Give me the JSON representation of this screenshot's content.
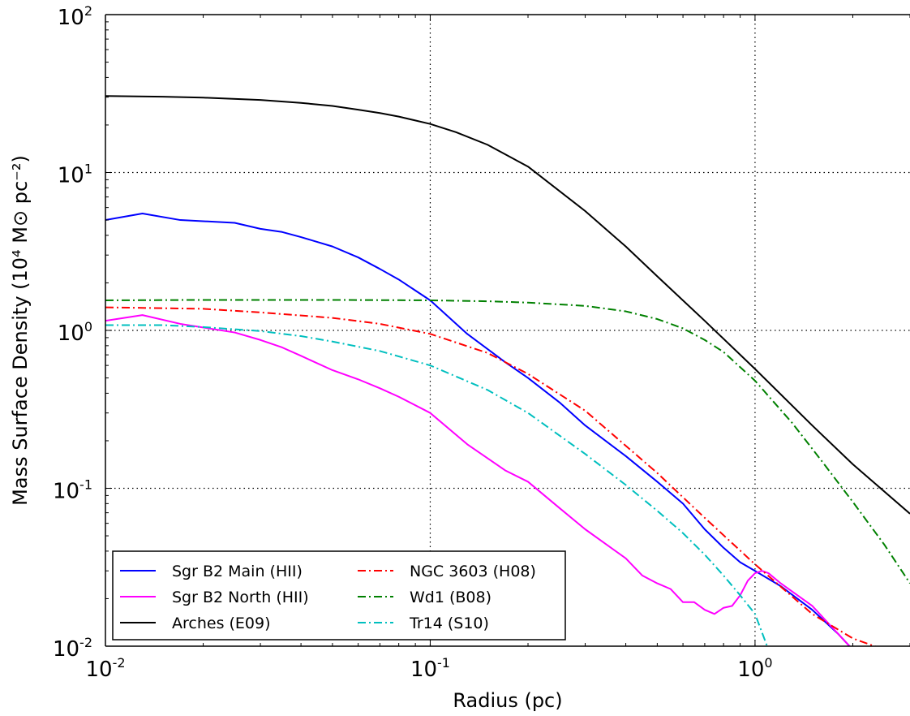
{
  "chart_data": {
    "type": "line",
    "xlabel": "Radius (pc)",
    "ylabel": "Mass Surface Density (10⁴ M⊙ pc⁻²)",
    "x_scale": "log",
    "y_scale": "log",
    "xlim": [
      0.01,
      3.0
    ],
    "ylim": [
      0.01,
      100
    ],
    "grid": true,
    "legend_position": "lower-left",
    "x_ticks": [
      {
        "value": 0.01,
        "base": "10",
        "exp": "-2"
      },
      {
        "value": 0.1,
        "base": "10",
        "exp": "-1"
      },
      {
        "value": 1,
        "base": "10",
        "exp": "0"
      }
    ],
    "y_ticks": [
      {
        "value": 0.01,
        "base": "10",
        "exp": "-2"
      },
      {
        "value": 0.1,
        "base": "10",
        "exp": "-1"
      },
      {
        "value": 1,
        "base": "10",
        "exp": "0"
      },
      {
        "value": 10,
        "base": "10",
        "exp": "1"
      },
      {
        "value": 100,
        "base": "10",
        "exp": "2"
      }
    ],
    "series": [
      {
        "name": "Sgr B2 Main (HII)",
        "color": "#0000ff",
        "style": "solid",
        "x": [
          0.01,
          0.013,
          0.017,
          0.025,
          0.03,
          0.035,
          0.04,
          0.05,
          0.06,
          0.07,
          0.08,
          0.1,
          0.13,
          0.17,
          0.2,
          0.25,
          0.3,
          0.4,
          0.5,
          0.6,
          0.7,
          0.8,
          0.9,
          1.0,
          1.2,
          1.5,
          1.8,
          2.0
        ],
        "y": [
          5.0,
          5.5,
          5.0,
          4.8,
          4.4,
          4.2,
          3.9,
          3.4,
          2.9,
          2.45,
          2.1,
          1.55,
          0.95,
          0.63,
          0.5,
          0.35,
          0.25,
          0.16,
          0.11,
          0.08,
          0.055,
          0.042,
          0.034,
          0.03,
          0.024,
          0.017,
          0.012,
          0.0095
        ]
      },
      {
        "name": "Sgr B2 North (HII)",
        "color": "#ff00ff",
        "style": "solid",
        "x": [
          0.01,
          0.013,
          0.017,
          0.025,
          0.03,
          0.035,
          0.04,
          0.05,
          0.06,
          0.07,
          0.08,
          0.1,
          0.13,
          0.17,
          0.2,
          0.25,
          0.3,
          0.4,
          0.45,
          0.5,
          0.55,
          0.6,
          0.65,
          0.7,
          0.75,
          0.8,
          0.85,
          0.9,
          0.95,
          1.0,
          1.05,
          1.1,
          1.2,
          1.5,
          1.8,
          2.0
        ],
        "y": [
          1.15,
          1.25,
          1.1,
          0.97,
          0.87,
          0.78,
          0.69,
          0.56,
          0.49,
          0.43,
          0.38,
          0.3,
          0.19,
          0.13,
          0.11,
          0.075,
          0.055,
          0.036,
          0.028,
          0.025,
          0.023,
          0.019,
          0.019,
          0.017,
          0.016,
          0.0175,
          0.018,
          0.021,
          0.026,
          0.029,
          0.03,
          0.029,
          0.025,
          0.018,
          0.012,
          0.0095
        ]
      },
      {
        "name": "Arches (E09)",
        "color": "#000000",
        "style": "solid",
        "x": [
          0.01,
          0.015,
          0.02,
          0.03,
          0.04,
          0.05,
          0.06,
          0.07,
          0.08,
          0.1,
          0.12,
          0.15,
          0.2,
          0.3,
          0.4,
          0.5,
          0.7,
          1.0,
          1.5,
          2.0,
          3.0
        ],
        "y": [
          30.5,
          30.2,
          29.8,
          28.8,
          27.6,
          26.4,
          25.0,
          23.8,
          22.6,
          20.3,
          18.0,
          15.0,
          10.9,
          5.7,
          3.4,
          2.2,
          1.15,
          0.57,
          0.25,
          0.142,
          0.069
        ]
      },
      {
        "name": "NGC 3603 (H08)",
        "color": "#ff0000",
        "style": "dashdot",
        "x": [
          0.01,
          0.02,
          0.03,
          0.05,
          0.07,
          0.1,
          0.15,
          0.2,
          0.3,
          0.5,
          0.7,
          1.0,
          1.5,
          2.0,
          2.5
        ],
        "y": [
          1.4,
          1.37,
          1.3,
          1.2,
          1.1,
          0.95,
          0.72,
          0.53,
          0.31,
          0.125,
          0.065,
          0.033,
          0.016,
          0.0112,
          0.0095
        ]
      },
      {
        "name": "Wd1 (B08)",
        "color": "#008000",
        "style": "dashdot",
        "x": [
          0.01,
          0.02,
          0.05,
          0.1,
          0.15,
          0.2,
          0.3,
          0.4,
          0.5,
          0.6,
          0.7,
          0.8,
          1.0,
          1.3,
          1.6,
          2.0,
          2.5,
          3.0
        ],
        "y": [
          1.55,
          1.56,
          1.56,
          1.55,
          1.53,
          1.5,
          1.43,
          1.32,
          1.18,
          1.03,
          0.87,
          0.73,
          0.48,
          0.26,
          0.15,
          0.082,
          0.044,
          0.025
        ]
      },
      {
        "name": "Tr14 (S10)",
        "color": "#00bfbf",
        "style": "dashdot",
        "x": [
          0.01,
          0.015,
          0.02,
          0.03,
          0.04,
          0.05,
          0.07,
          0.1,
          0.15,
          0.2,
          0.3,
          0.4,
          0.5,
          0.6,
          0.7,
          0.8,
          0.9,
          1.0,
          1.1
        ],
        "y": [
          1.08,
          1.08,
          1.05,
          0.99,
          0.92,
          0.85,
          0.74,
          0.6,
          0.42,
          0.3,
          0.165,
          0.105,
          0.072,
          0.052,
          0.038,
          0.028,
          0.021,
          0.016,
          0.0095
        ]
      }
    ]
  }
}
